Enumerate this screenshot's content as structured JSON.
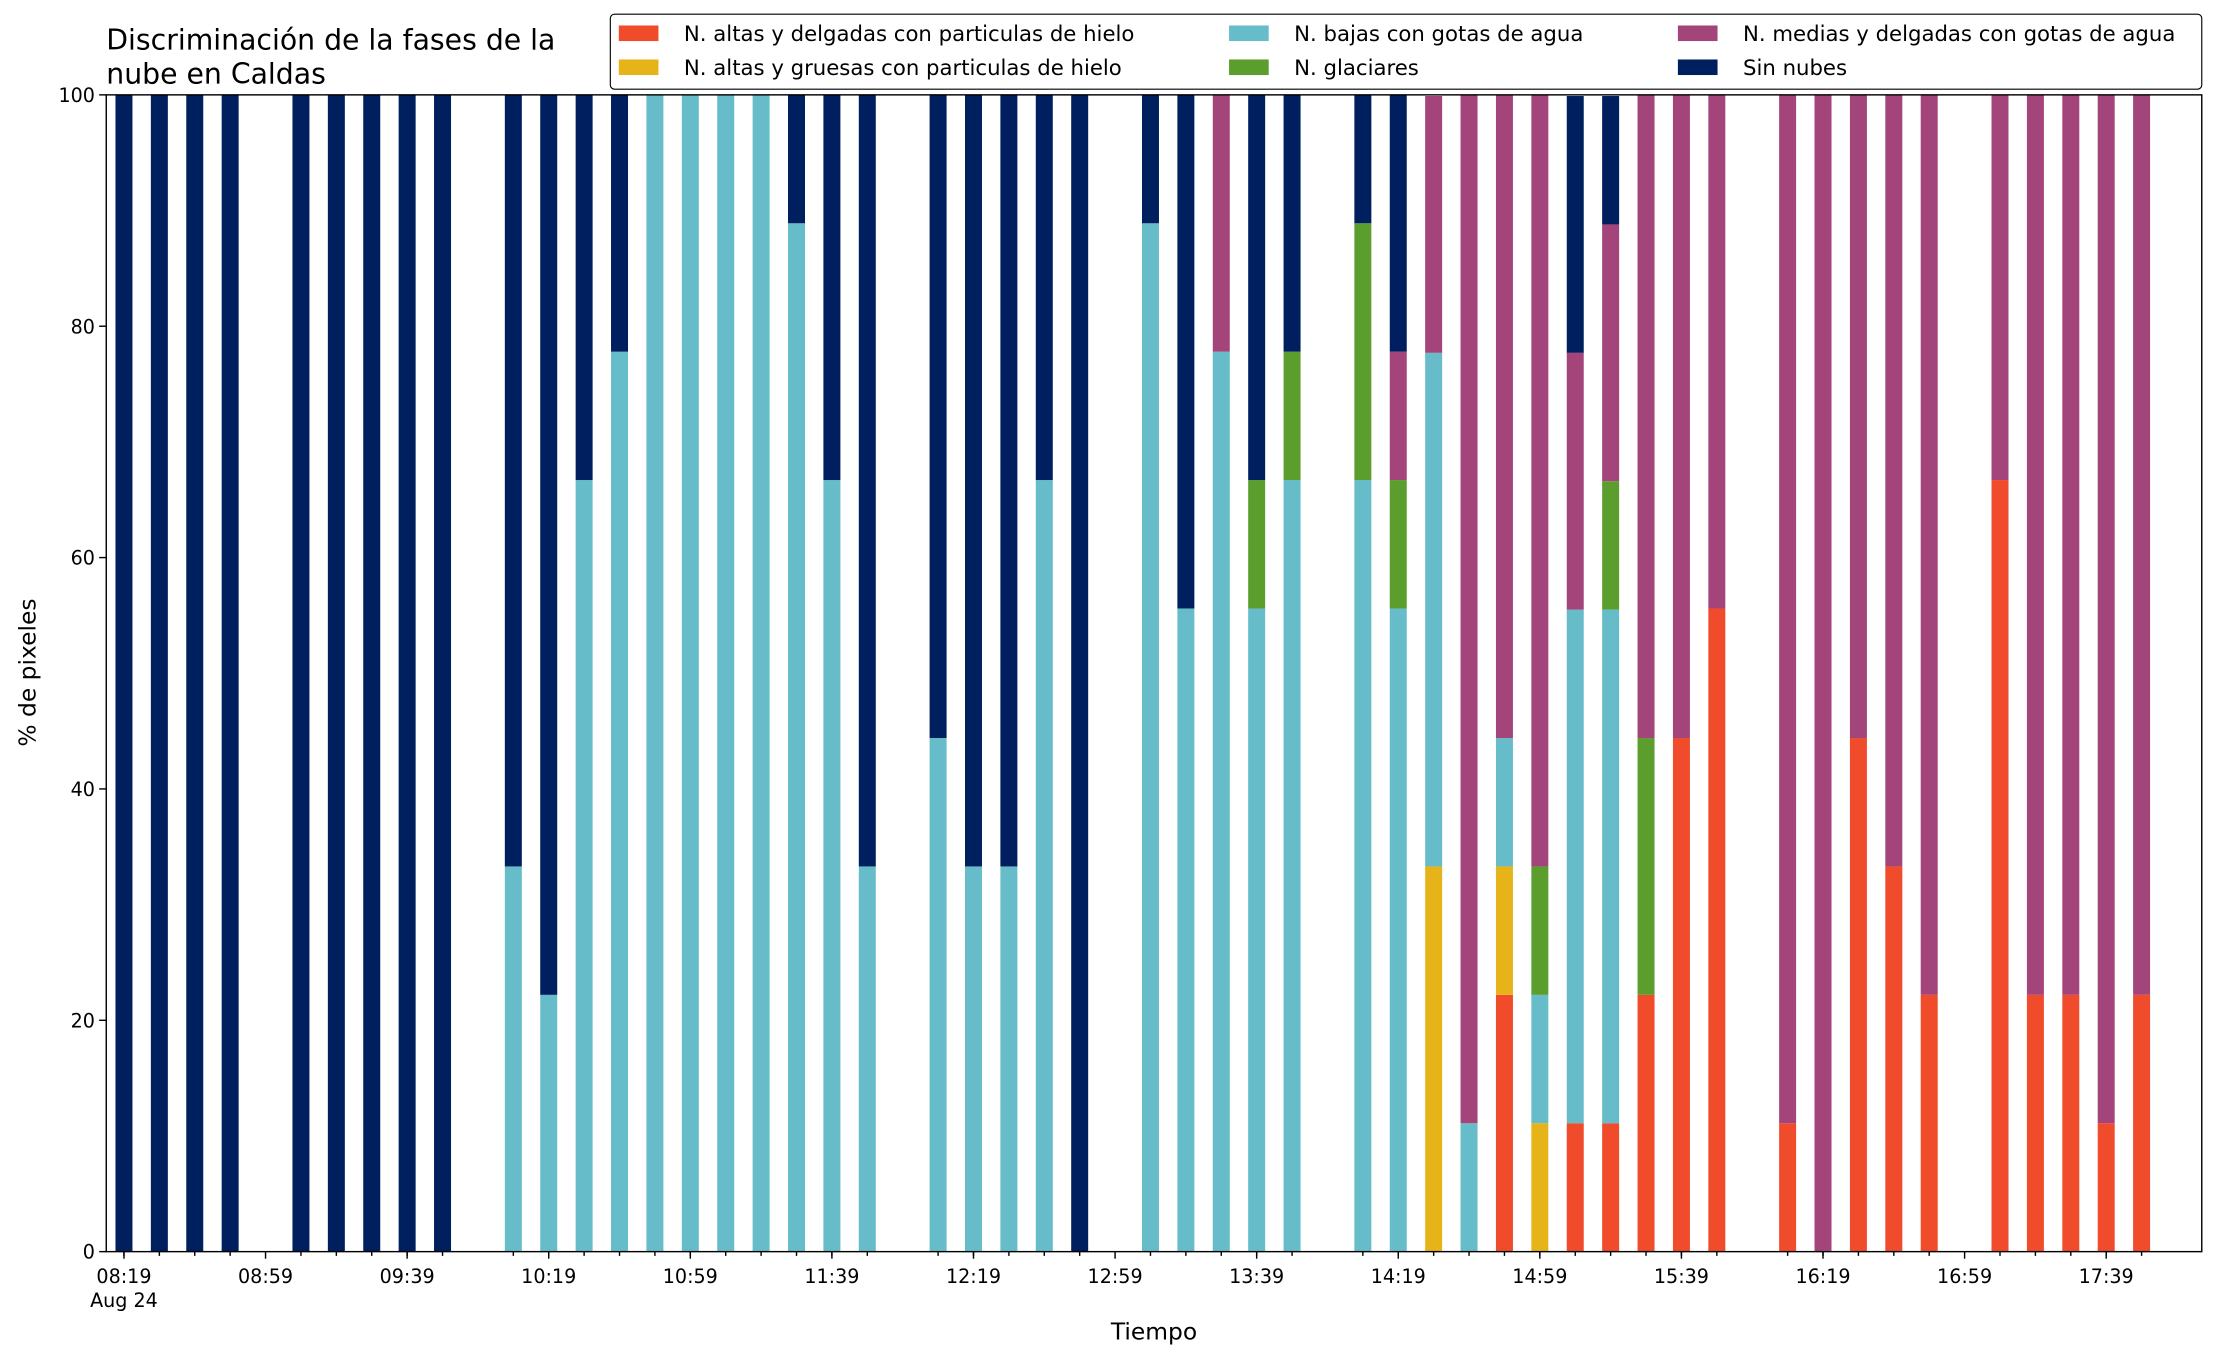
{
  "chart_data": {
    "type": "stacked_bar",
    "title": [
      "Discriminación de la fases de la",
      "nube en Caldas"
    ],
    "x_label": "Tiempo",
    "y_label": "% de pixeles",
    "x_date_label": "Aug 24",
    "x": [
      "08:19",
      "08:29",
      "08:39",
      "08:49",
      "09:09",
      "09:19",
      "09:29",
      "09:39",
      "09:49",
      "10:09",
      "10:19",
      "10:29",
      "10:39",
      "10:49",
      "10:59",
      "11:09",
      "11:19",
      "11:29",
      "11:39",
      "11:49",
      "12:09",
      "12:19",
      "12:29",
      "12:39",
      "12:49",
      "13:09",
      "13:19",
      "13:29",
      "13:39",
      "13:49",
      "14:09",
      "14:19",
      "14:29",
      "14:39",
      "14:49",
      "14:59",
      "15:09",
      "15:19",
      "15:29",
      "15:39",
      "15:49",
      "16:09",
      "16:19",
      "16:29",
      "16:39",
      "16:49",
      "17:09",
      "17:19",
      "17:29",
      "17:39",
      "17:49"
    ],
    "series": [
      {
        "name": "N. altas y delgadas con particulas de hielo",
        "color": "#f04b2b",
        "values": [
          0,
          0,
          0,
          0,
          0,
          0,
          0,
          0,
          0,
          0,
          0,
          0,
          0,
          0,
          0,
          0,
          0,
          0,
          0,
          0,
          0,
          0,
          0,
          0,
          0,
          0,
          0,
          0,
          0,
          0,
          0,
          0,
          0,
          0,
          22.2,
          0,
          11.1,
          11.1,
          22.2,
          44.4,
          55.6,
          11.1,
          0,
          44.4,
          33.3,
          22.2,
          66.7,
          22.2,
          22.2,
          11.1,
          22.2
        ]
      },
      {
        "name": "N. altas y gruesas con particulas de hielo",
        "color": "#e6b419",
        "values": [
          0,
          0,
          0,
          0,
          0,
          0,
          0,
          0,
          0,
          0,
          0,
          0,
          0,
          0,
          0,
          0,
          0,
          0,
          0,
          0,
          0,
          0,
          0,
          0,
          0,
          0,
          0,
          0,
          0,
          0,
          0,
          0,
          33.3,
          0,
          11.1,
          11.1,
          0,
          0,
          0,
          0,
          0,
          0,
          0,
          0,
          0,
          0,
          0,
          0,
          0,
          0,
          0
        ]
      },
      {
        "name": "N. bajas con gotas de agua",
        "color": "#66bdc9",
        "values": [
          0,
          0,
          0,
          0,
          0,
          0,
          0,
          0,
          0,
          33.3,
          22.2,
          66.7,
          77.8,
          100,
          100,
          100,
          100,
          88.9,
          66.7,
          33.3,
          44.4,
          33.3,
          33.3,
          66.7,
          0,
          88.9,
          55.6,
          77.8,
          55.6,
          66.7,
          66.7,
          55.6,
          44.4,
          11.1,
          11.1,
          11.1,
          44.4,
          44.4,
          0,
          0,
          0,
          0,
          0,
          0,
          0,
          0,
          0,
          0,
          0,
          0,
          0
        ]
      },
      {
        "name": "N. glaciares",
        "color": "#5c9e2e",
        "values": [
          0,
          0,
          0,
          0,
          0,
          0,
          0,
          0,
          0,
          0,
          0,
          0,
          0,
          0,
          0,
          0,
          0,
          0,
          0,
          0,
          0,
          0,
          0,
          0,
          0,
          0,
          0,
          0,
          11.1,
          11.1,
          22.2,
          11.1,
          0,
          0,
          0,
          11.1,
          0,
          11.1,
          22.2,
          0,
          0,
          0,
          0,
          0,
          0,
          0,
          0,
          0,
          0,
          0,
          0
        ]
      },
      {
        "name": "N. medias y delgadas con gotas de agua",
        "color": "#a3457a",
        "values": [
          0,
          0,
          0,
          0,
          0,
          0,
          0,
          0,
          0,
          0,
          0,
          0,
          0,
          0,
          0,
          0,
          0,
          0,
          0,
          0,
          0,
          0,
          0,
          0,
          0,
          0,
          0,
          22.2,
          0,
          0,
          0,
          11.1,
          22.2,
          88.9,
          55.6,
          66.7,
          22.2,
          22.2,
          55.6,
          55.6,
          44.4,
          88.9,
          100,
          55.6,
          66.7,
          77.8,
          33.3,
          77.8,
          77.8,
          88.9,
          77.8
        ]
      },
      {
        "name": "Sin nubes",
        "color": "#001f5e",
        "values": [
          100,
          100,
          100,
          100,
          100,
          100,
          100,
          100,
          100,
          66.7,
          77.8,
          33.3,
          22.2,
          0,
          0,
          0,
          0,
          11.1,
          33.3,
          66.7,
          55.6,
          66.7,
          66.7,
          33.3,
          100,
          11.1,
          44.4,
          0,
          33.3,
          22.2,
          11.1,
          22.2,
          0,
          0,
          0,
          0,
          22.2,
          11.1,
          0,
          0,
          0,
          0,
          0,
          0,
          0,
          0,
          0,
          0,
          0,
          0,
          0
        ]
      }
    ],
    "xlim": [
      "08:14",
      "18:06"
    ],
    "xticks": [
      "08:19",
      "08:59",
      "09:39",
      "10:19",
      "10:59",
      "11:39",
      "12:19",
      "12:59",
      "13:39",
      "14:19",
      "14:59",
      "15:39",
      "16:19",
      "16:59",
      "17:39"
    ],
    "ylim": [
      0,
      100
    ],
    "yticks": [
      0,
      20,
      40,
      60,
      80,
      100
    ],
    "legend": "upper right",
    "grid": false
  }
}
